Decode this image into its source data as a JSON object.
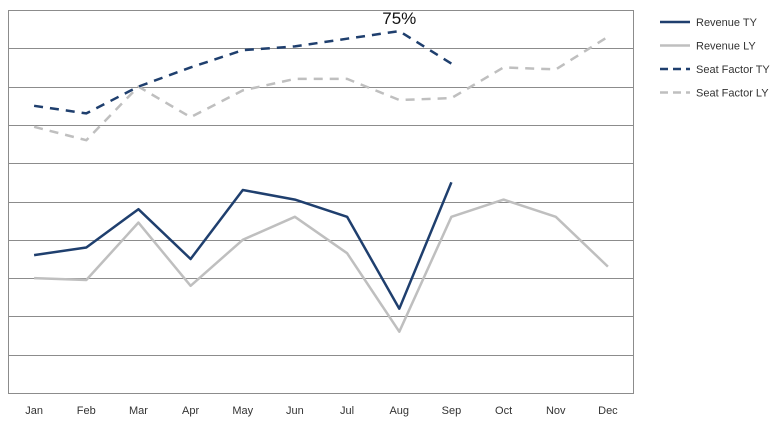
{
  "chart_data": {
    "type": "line",
    "title": "",
    "xlabel": "",
    "ylabel": "",
    "categories": [
      "Jan",
      "Feb",
      "Mar",
      "Apr",
      "May",
      "Jun",
      "Jul",
      "Aug",
      "Sep",
      "Oct",
      "Nov",
      "Dec"
    ],
    "ylim": [
      0,
      10
    ],
    "grid": true,
    "legend_position": "right",
    "annotation": {
      "text": "75%",
      "series_index": 2,
      "point_index": 7
    },
    "series": [
      {
        "name": "Revenue TY",
        "color": "#1f3f6e",
        "dash": "solid",
        "values": [
          3.6,
          3.8,
          4.8,
          3.5,
          5.3,
          5.05,
          4.6,
          2.2,
          5.5,
          null,
          null,
          null
        ]
      },
      {
        "name": "Revenue LY",
        "color": "#bfbfbf",
        "dash": "solid",
        "values": [
          3.0,
          2.95,
          4.45,
          2.8,
          4.0,
          4.6,
          3.65,
          1.6,
          4.6,
          5.05,
          4.6,
          3.3
        ]
      },
      {
        "name": "Seat Factor TY",
        "color": "#1f3f6e",
        "dash": "dashed",
        "values": [
          7.5,
          7.3,
          8.0,
          8.5,
          8.95,
          9.05,
          9.25,
          9.45,
          8.6,
          null,
          null,
          null
        ]
      },
      {
        "name": "Seat Factor LY",
        "color": "#bfbfbf",
        "dash": "dashed",
        "values": [
          6.95,
          6.6,
          8.0,
          7.2,
          7.9,
          8.2,
          8.2,
          7.65,
          7.7,
          8.5,
          8.45,
          9.3
        ]
      }
    ]
  }
}
